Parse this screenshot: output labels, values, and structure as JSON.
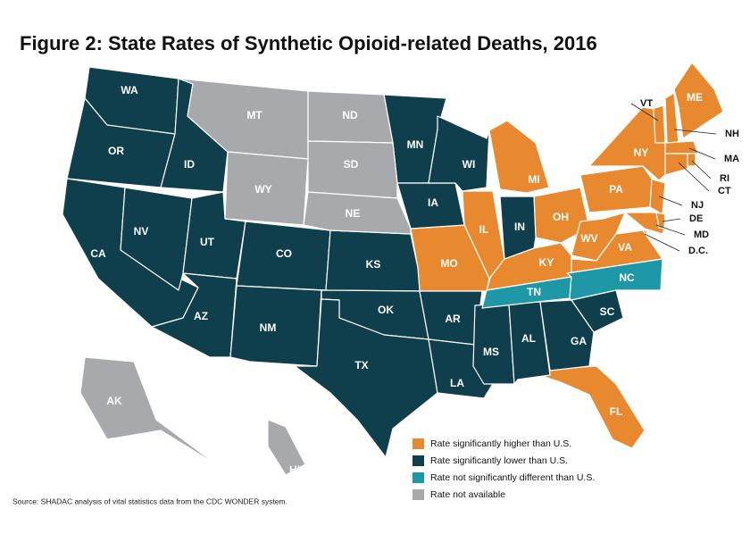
{
  "title": "Figure 2: State Rates of Synthetic Opioid-related Deaths, 2016",
  "source": "Source: SHADAC analysis of vital statistics data from the CDC WONDER system.",
  "legend": [
    {
      "label": "Rate significantly higher than U.S.",
      "color": "#e8892f",
      "states": [
        "VT",
        "NH",
        "ME",
        "MA",
        "RI",
        "CT",
        "NY",
        "NJ",
        "PA",
        "DE",
        "MD",
        "D.C.",
        "OH",
        "MI",
        "WV",
        "VA",
        "KY",
        "IL",
        "MO",
        "FL"
      ]
    },
    {
      "label": "Rate significantly lower than U.S.",
      "color": "#0f3f4c",
      "states": [
        "WA",
        "OR",
        "ID",
        "CA",
        "NV",
        "UT",
        "AZ",
        "CO",
        "NM",
        "KS",
        "OK",
        "TX",
        "MN",
        "IA",
        "WI",
        "AR",
        "LA",
        "MS",
        "AL",
        "GA",
        "SC",
        "IN"
      ]
    },
    {
      "label": "Rate not significantly different than U.S.",
      "color": "#1e98a7",
      "states": [
        "TN",
        "NC"
      ]
    },
    {
      "label": "Rate not available",
      "color": "#a7a9ac",
      "states": [
        "MT",
        "ND",
        "SD",
        "WY",
        "NE",
        "AK",
        "HI"
      ]
    }
  ]
}
